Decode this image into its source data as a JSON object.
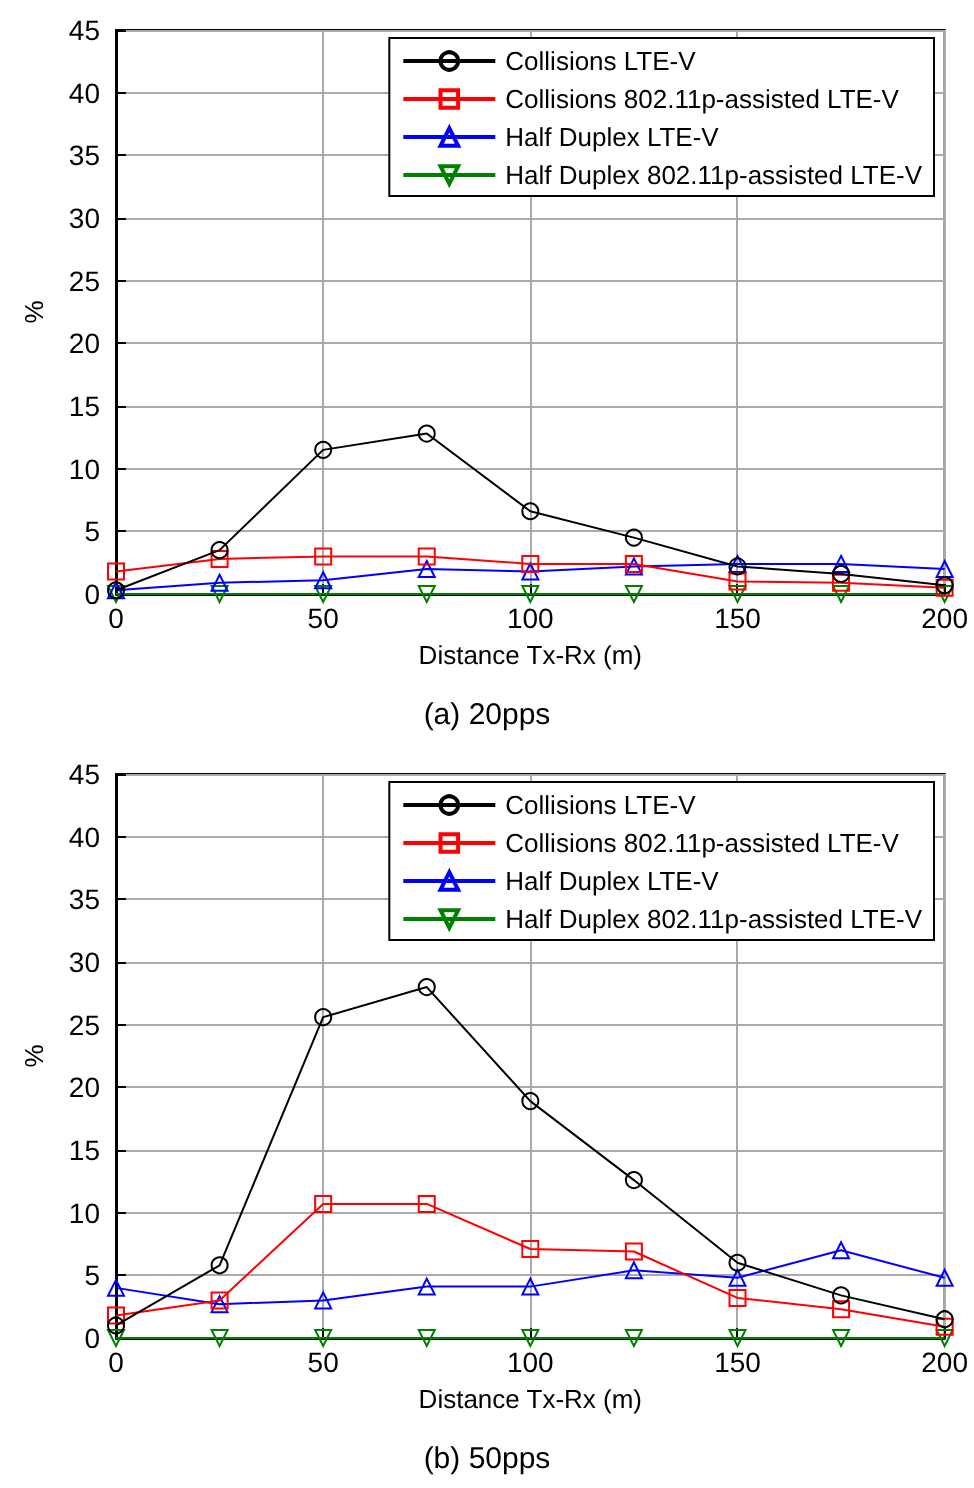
{
  "chart_data": [
    {
      "type": "line",
      "title": "(a) 20pps",
      "xlabel": "Distance Tx-Rx (m)",
      "ylabel": "%",
      "x": [
        0,
        25,
        50,
        75,
        100,
        125,
        150,
        175,
        200
      ],
      "series": [
        {
          "name": "Collisions LTE-V",
          "color": "#000000",
          "marker": "circle",
          "values": [
            0.3,
            3.5,
            11.5,
            12.8,
            6.6,
            4.5,
            2.2,
            1.6,
            0.7
          ]
        },
        {
          "name": "Collisions 802.11p-assisted LTE-V",
          "color": "#ff0000",
          "marker": "square",
          "values": [
            1.8,
            2.8,
            3.0,
            3.0,
            2.4,
            2.4,
            1.0,
            0.9,
            0.5
          ]
        },
        {
          "name": "Half Duplex LTE-V",
          "color": "#0000ff",
          "marker": "triangle",
          "values": [
            0.3,
            0.9,
            1.1,
            2.0,
            1.8,
            2.2,
            2.4,
            2.4,
            2.0
          ]
        },
        {
          "name": "Half Duplex 802.11p-assisted LTE-V",
          "color": "#008000",
          "marker": "triangle-down",
          "values": [
            0,
            0,
            0,
            0,
            0,
            0,
            0,
            0,
            0
          ]
        }
      ],
      "xlim": [
        0,
        200
      ],
      "xticks": [
        0,
        50,
        100,
        150,
        200
      ],
      "ylim": [
        0,
        45
      ],
      "yticks": [
        0,
        5,
        10,
        15,
        20,
        25,
        30,
        35,
        40,
        45
      ],
      "grid": true,
      "legend": "top right",
      "line_style": "solid"
    },
    {
      "type": "line",
      "title": "(b) 50pps",
      "xlabel": "Distance Tx-Rx (m)",
      "ylabel": "%",
      "x": [
        0,
        25,
        50,
        75,
        100,
        125,
        150,
        175,
        200
      ],
      "series": [
        {
          "name": "Collisions LTE-V",
          "color": "#000000",
          "marker": "circle",
          "values": [
            1.0,
            5.8,
            25.6,
            28.0,
            18.9,
            12.6,
            6.0,
            3.4,
            1.5
          ]
        },
        {
          "name": "Collisions 802.11p-assisted LTE-V",
          "color": "#ff0000",
          "marker": "square",
          "values": [
            1.8,
            3.0,
            10.7,
            10.7,
            7.1,
            6.9,
            3.2,
            2.3,
            0.9
          ]
        },
        {
          "name": "Half Duplex LTE-V",
          "color": "#0000ff",
          "marker": "triangle",
          "values": [
            4.0,
            2.7,
            3.0,
            4.1,
            4.1,
            5.4,
            4.8,
            7.0,
            4.8
          ]
        },
        {
          "name": "Half Duplex 802.11p-assisted LTE-V",
          "color": "#008000",
          "marker": "triangle-down",
          "values": [
            0,
            0,
            0,
            0,
            0,
            0,
            0,
            0,
            0
          ]
        }
      ],
      "xlim": [
        0,
        200
      ],
      "xticks": [
        0,
        50,
        100,
        150,
        200
      ],
      "ylim": [
        0,
        45
      ],
      "yticks": [
        0,
        5,
        10,
        15,
        20,
        25,
        30,
        35,
        40,
        45
      ],
      "grid": true,
      "legend": "top right",
      "line_style": "solid"
    }
  ]
}
